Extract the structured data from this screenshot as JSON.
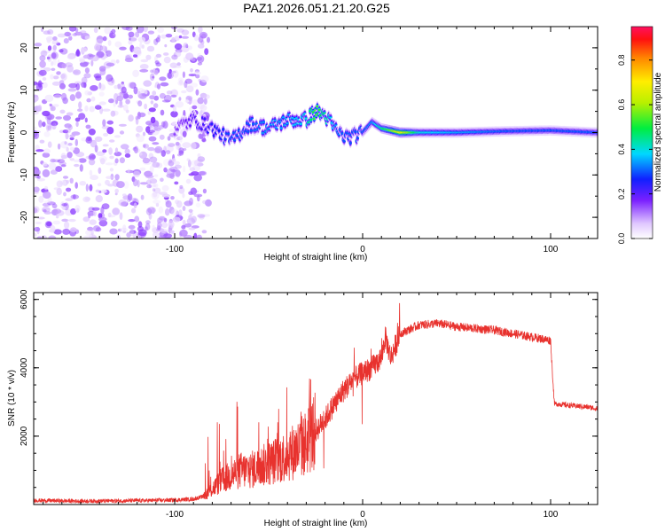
{
  "figure_title": "PAZ1.2026.051.21.20.G25",
  "chart_data": [
    {
      "type": "heatmap",
      "xlabel": "Height of straight line (km)",
      "ylabel": "Frequency (Hz)",
      "xlim": [
        -175,
        125
      ],
      "ylim": [
        -25,
        25
      ],
      "xticks": [
        -100,
        0,
        100
      ],
      "xtick_labels": [
        "-100",
        "0",
        "100"
      ],
      "yticks": [
        -20,
        -10,
        0,
        10,
        20
      ],
      "ytick_labels": [
        "-20",
        "-10",
        "0",
        "10",
        "20"
      ],
      "colorbar": {
        "label": "Normalized spectral amplitude",
        "range": [
          0,
          0.95
        ],
        "ticks": [
          0.0,
          0.2,
          0.4,
          0.6,
          0.8
        ],
        "tick_labels": [
          "0.0",
          "0.2",
          "0.4",
          "0.6",
          "0.8"
        ]
      },
      "ridge": {
        "x": [
          -100,
          -90,
          -80,
          -70,
          -60,
          -50,
          -40,
          -30,
          -25,
          -20,
          -15,
          -10,
          -5,
          0,
          5,
          10,
          20,
          30,
          50,
          75,
          100,
          125
        ],
        "freq": [
          1,
          3,
          1,
          -2,
          2,
          1,
          3,
          3,
          5,
          4,
          1,
          -1,
          -1,
          0,
          2.5,
          1,
          0,
          0,
          0,
          0.3,
          0.5,
          0
        ],
        "amplitude": [
          0.15,
          0.2,
          0.25,
          0.3,
          0.3,
          0.35,
          0.35,
          0.4,
          0.55,
          0.45,
          0.35,
          0.3,
          0.3,
          0.3,
          0.35,
          0.45,
          0.7,
          0.4,
          0.35,
          0.3,
          0.3,
          0.3
        ]
      },
      "noise_region": {
        "x_from": -175,
        "x_to": -82,
        "amplitude": 0.08
      }
    },
    {
      "type": "line",
      "xlabel": "Height of straight line (km)",
      "ylabel": "SNR (10 * v/v)",
      "xlim": [
        -175,
        125
      ],
      "ylim": [
        0,
        6200
      ],
      "xticks": [
        -100,
        0,
        100
      ],
      "xtick_labels": [
        "-100",
        "0",
        "100"
      ],
      "yticks": [
        2000,
        4000,
        6000
      ],
      "ytick_labels": [
        "2000",
        "4000",
        "6000"
      ],
      "series": [
        {
          "name": "SNR",
          "color": "#e8322e",
          "x": [
            -175,
            -150,
            -125,
            -100,
            -90,
            -85,
            -80,
            -75,
            -70,
            -65,
            -60,
            -55,
            -50,
            -45,
            -40,
            -35,
            -30,
            -25,
            -20,
            -15,
            -10,
            -5,
            0,
            5,
            10,
            12,
            15,
            20,
            30,
            40,
            50,
            60,
            70,
            80,
            90,
            100,
            101,
            102,
            110,
            120,
            125
          ],
          "values": [
            120,
            100,
            110,
            130,
            160,
            230,
            450,
            700,
            850,
            1000,
            1000,
            1100,
            1200,
            1300,
            1450,
            1600,
            1800,
            2150,
            2500,
            2950,
            3350,
            3650,
            3850,
            4000,
            4300,
            4900,
            4300,
            5000,
            5250,
            5300,
            5200,
            5150,
            5100,
            5000,
            4900,
            4800,
            3800,
            2950,
            2900,
            2850,
            2800
          ]
        }
      ]
    }
  ]
}
